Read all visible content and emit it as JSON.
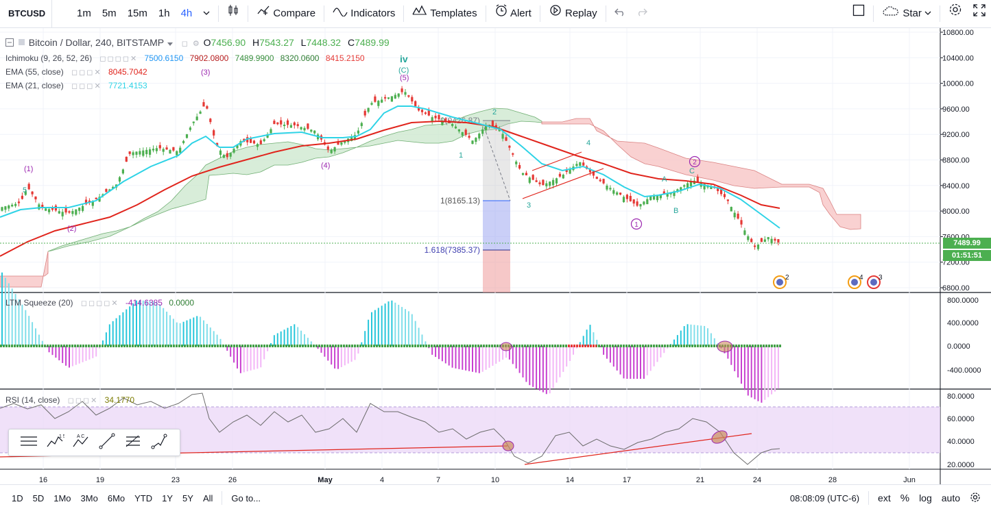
{
  "toolbar": {
    "symbol": "BTCUSD",
    "intervals": [
      "1m",
      "5m",
      "15m",
      "1h",
      "4h"
    ],
    "active_interval": "4h",
    "compare_label": "Compare",
    "indicators_label": "Indicators",
    "templates_label": "Templates",
    "alert_label": "Alert",
    "replay_label": "Replay",
    "star_label": "Star"
  },
  "legend": {
    "main": {
      "name": "Bitcoin / Dollar, 240, BITSTAMP",
      "o_label": "O",
      "o": "7456.90",
      "h_label": "H",
      "h": "7543.27",
      "l_label": "L",
      "l": "7448.32",
      "c_label": "C",
      "c": "7489.99"
    },
    "ichimoku": {
      "name": "Ichimoku (9, 26, 52, 26)",
      "v1": "7500.6150",
      "v2": "7902.0800",
      "v3": "7489.9900",
      "v4": "8320.0600",
      "v5": "8415.2150"
    },
    "ema55": {
      "name": "EMA (55, close)",
      "value": "8045.7042"
    },
    "ema21": {
      "name": "EMA (21, close)",
      "value": "7721.4153"
    },
    "squeeze": {
      "name": "LTM Squeeze (20)",
      "v1": "-414.6385",
      "v2": "0.0000"
    },
    "rsi": {
      "name": "RSI (14, close)",
      "value": "34.1770"
    }
  },
  "price_axis": [
    "10800.00",
    "10400.00",
    "10000.00",
    "9600.00",
    "9200.00",
    "8800.00",
    "8400.00",
    "8000.00",
    "7600.00",
    "7200.00",
    "6800.00"
  ],
  "squeeze_axis": [
    "800.0000",
    "400.0000",
    "0.0000",
    "-400.0000"
  ],
  "rsi_axis": [
    "80.0000",
    "60.0000",
    "40.0000",
    "20.0000"
  ],
  "current_price": "7489.99",
  "countdown": "01:51:51",
  "time_axis": [
    "16",
    "19",
    "23",
    "26",
    "May",
    "4",
    "7",
    "10",
    "14",
    "17",
    "21",
    "24",
    "28",
    "Jun"
  ],
  "fib": {
    "top": "0(9426.87)",
    "mid": "1(8165.13)",
    "low": "1.618(7385.37)"
  },
  "wave_labels": {
    "w1": "(1)",
    "w2": "(2)",
    "w3": "(3)",
    "w4": "(4)",
    "w5": "(5)",
    "iv": "iv",
    "c": "(C)",
    "a1": "1",
    "a2": "2",
    "a3": "3",
    "a4": "4",
    "a5": "5",
    "A": "A",
    "B": "B",
    "C": "C",
    "circ1": "1",
    "circ2": "2"
  },
  "events": {
    "e1": "2",
    "e2": "4",
    "e3": "3"
  },
  "bottom": {
    "ranges": [
      "1D",
      "5D",
      "1Mo",
      "3Mo",
      "6Mo",
      "YTD",
      "1Y",
      "5Y",
      "All"
    ],
    "goto_label": "Go to...",
    "clock": "08:08:09 (UTC-6)",
    "ext_label": "ext",
    "pct_label": "%",
    "log_label": "log",
    "auto_label": "auto"
  },
  "colors": {
    "up": "#4caf50",
    "down": "#e53935",
    "ema21": "#2ed3e6",
    "ema55": "#e0241c",
    "cloud_up": "#a5d6a7",
    "cloud_down": "#f6b4b4",
    "rsi_band": "#e9d4f7"
  }
}
